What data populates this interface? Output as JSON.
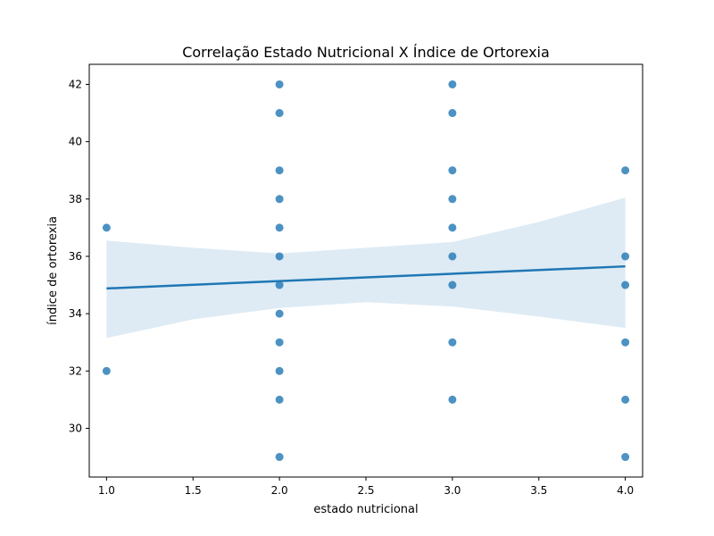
{
  "chart_data": {
    "type": "scatter",
    "title": "Correlação Estado Nutricional X Índice de Ortorexia",
    "xlabel": "estado nutricional",
    "ylabel": "índice de ortorexia",
    "xlim": [
      0.9,
      4.1
    ],
    "ylim": [
      28.3,
      42.7
    ],
    "xticks": [
      "1.0",
      "1.5",
      "2.0",
      "2.5",
      "3.0",
      "3.5",
      "4.0"
    ],
    "yticks": [
      "30",
      "32",
      "34",
      "36",
      "38",
      "40",
      "42"
    ],
    "grid": false,
    "colors": {
      "points": "#1f77b4",
      "line": "#1f77b4",
      "band": "#1f77b4"
    },
    "series": [
      {
        "points": [
          {
            "x": 1,
            "y": 37
          },
          {
            "x": 1,
            "y": 32
          },
          {
            "x": 2,
            "y": 42
          },
          {
            "x": 2,
            "y": 41
          },
          {
            "x": 2,
            "y": 39
          },
          {
            "x": 2,
            "y": 38
          },
          {
            "x": 2,
            "y": 37
          },
          {
            "x": 2,
            "y": 36
          },
          {
            "x": 2,
            "y": 35
          },
          {
            "x": 2,
            "y": 34
          },
          {
            "x": 2,
            "y": 33
          },
          {
            "x": 2,
            "y": 32
          },
          {
            "x": 2,
            "y": 31
          },
          {
            "x": 2,
            "y": 29
          },
          {
            "x": 3,
            "y": 42
          },
          {
            "x": 3,
            "y": 41
          },
          {
            "x": 3,
            "y": 39
          },
          {
            "x": 3,
            "y": 38
          },
          {
            "x": 3,
            "y": 37
          },
          {
            "x": 3,
            "y": 36
          },
          {
            "x": 3,
            "y": 35
          },
          {
            "x": 3,
            "y": 33
          },
          {
            "x": 3,
            "y": 31
          },
          {
            "x": 4,
            "y": 39
          },
          {
            "x": 4,
            "y": 36
          },
          {
            "x": 4,
            "y": 35
          },
          {
            "x": 4,
            "y": 33
          },
          {
            "x": 4,
            "y": 31
          },
          {
            "x": 4,
            "y": 29
          }
        ]
      }
    ],
    "regression": {
      "x": [
        1.0,
        4.0
      ],
      "y": [
        34.88,
        35.65
      ]
    },
    "confidence_band": {
      "x": [
        1.0,
        1.5,
        2.0,
        2.5,
        3.0,
        3.5,
        4.0
      ],
      "upper": [
        36.55,
        36.3,
        36.1,
        36.3,
        36.5,
        37.2,
        38.05
      ],
      "lower": [
        33.15,
        33.8,
        34.2,
        34.4,
        34.25,
        33.9,
        33.5
      ]
    }
  }
}
